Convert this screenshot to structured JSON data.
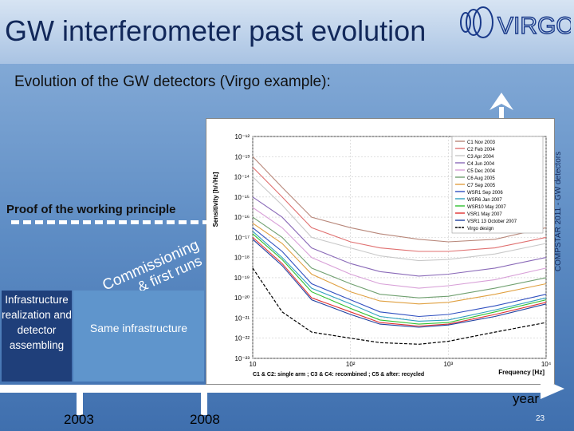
{
  "slide": {
    "title": "GW interferometer past evolution",
    "bullet_glyph": "",
    "bullet": "Evolution of the GW detectors (Virgo example):",
    "proof": "Proof of the working principle",
    "infra_text": "Infrastructure realization and detector assembling",
    "same_text": "Same infrastructure",
    "commissioning_line1": "Commissioning",
    "commissioning_line2": "& first runs",
    "year_label": "year",
    "year_2003": "2003",
    "year_2008": "2008",
    "page_number": "23",
    "side_label": "COMPSTAR 2011 - GW detectors",
    "logo_text": "VIRGO"
  },
  "chart_data": {
    "type": "line",
    "ylabel": "Sensitivity [h/√Hz]",
    "xlabel": "Frequency [Hz]",
    "x_scale": "log",
    "y_scale": "log",
    "xlim": [
      10,
      10000
    ],
    "ylim": [
      1e-23,
      1e-12
    ],
    "x_tick_labels": [
      "10",
      "10²",
      "10³",
      "10⁴"
    ],
    "x_ticks": [
      10,
      100,
      1000,
      10000
    ],
    "y_tick_labels": [
      "10⁻¹²",
      "10⁻¹³",
      "10⁻¹⁴",
      "10⁻¹⁵",
      "10⁻¹⁶",
      "10⁻¹⁷",
      "10⁻¹⁸",
      "10⁻¹⁹",
      "10⁻²⁰",
      "10⁻²¹",
      "10⁻²²",
      "10⁻²³"
    ],
    "y_ticks": [
      1e-12,
      1e-13,
      1e-14,
      1e-15,
      1e-16,
      1e-17,
      1e-18,
      1e-19,
      1e-20,
      1e-21,
      1e-22,
      1e-23
    ],
    "footnote": "C1 & C2: single arm ; C3 & C4: recombined ; C5 & after: recycled",
    "x": [
      10,
      20,
      40,
      100,
      200,
      500,
      1000,
      3000,
      10000
    ],
    "series": [
      {
        "name": "C1 Nov 2003",
        "color": "#b8877a",
        "values": [
          1e-13,
          3e-15,
          1e-16,
          3e-17,
          1.5e-17,
          8e-18,
          6e-18,
          8e-18,
          3e-17
        ]
      },
      {
        "name": "C2 Feb 2004",
        "color": "#e07070",
        "values": [
          3e-14,
          1e-15,
          3e-17,
          6e-18,
          3e-18,
          2e-18,
          2e-18,
          3e-18,
          1e-17
        ]
      },
      {
        "name": "C3 Apr 2004",
        "color": "#c8c8c8",
        "values": [
          1e-14,
          4e-16,
          1e-17,
          3e-18,
          1.2e-18,
          7e-19,
          8e-19,
          1.5e-18,
          5e-18
        ]
      },
      {
        "name": "C4 Jun 2004",
        "color": "#8a6ab8",
        "values": [
          1e-15,
          1e-16,
          3e-18,
          5e-19,
          2e-19,
          1.2e-19,
          1.5e-19,
          3e-19,
          1e-18
        ]
      },
      {
        "name": "C5 Dec 2004",
        "color": "#d8a0d8",
        "values": [
          3e-16,
          3e-17,
          1e-18,
          1.5e-19,
          5e-20,
          3e-20,
          4e-20,
          8e-20,
          3e-19
        ]
      },
      {
        "name": "C6 Aug 2005",
        "color": "#70a070",
        "values": [
          1e-16,
          1e-17,
          3e-19,
          5e-20,
          1.5e-20,
          1e-20,
          1.2e-20,
          3e-20,
          1e-19
        ]
      },
      {
        "name": "C7 Sep 2005",
        "color": "#e0a040",
        "values": [
          5e-17,
          5e-18,
          1.5e-19,
          2e-20,
          7e-21,
          5e-21,
          6e-21,
          1.5e-20,
          5e-20
        ]
      },
      {
        "name": "WSR1 Sep 2006",
        "color": "#3050c0",
        "values": [
          3e-17,
          2e-18,
          5e-20,
          8e-21,
          2e-21,
          1.2e-21,
          1.5e-21,
          4e-21,
          1.5e-20
        ]
      },
      {
        "name": "WSR6 Jan 2007",
        "color": "#30a0c0",
        "values": [
          2e-17,
          1e-18,
          3e-20,
          5e-21,
          1.2e-21,
          7e-22,
          8e-22,
          2.5e-21,
          1e-20
        ]
      },
      {
        "name": "WSR10 May 2007",
        "color": "#30c030",
        "values": [
          1.5e-17,
          8e-19,
          2e-20,
          3e-21,
          8e-22,
          5e-22,
          6e-22,
          2e-21,
          8e-21
        ]
      },
      {
        "name": "VSR1 May 2007",
        "color": "#e03030",
        "values": [
          1e-17,
          5e-19,
          1e-20,
          2e-21,
          6e-22,
          4e-22,
          5e-22,
          1.5e-21,
          6e-21
        ]
      },
      {
        "name": "VSR1 13 October 2007",
        "color": "#2040a0",
        "values": [
          8e-18,
          4e-19,
          8e-21,
          1.5e-21,
          5e-22,
          3.5e-22,
          4.5e-22,
          1.2e-21,
          5e-21
        ]
      },
      {
        "name": "Virgo design",
        "color": "#000000",
        "dashed": true,
        "values": [
          3e-19,
          2e-21,
          2e-22,
          1e-22,
          6e-23,
          5e-23,
          7e-23,
          2e-22,
          6e-22
        ]
      }
    ]
  }
}
